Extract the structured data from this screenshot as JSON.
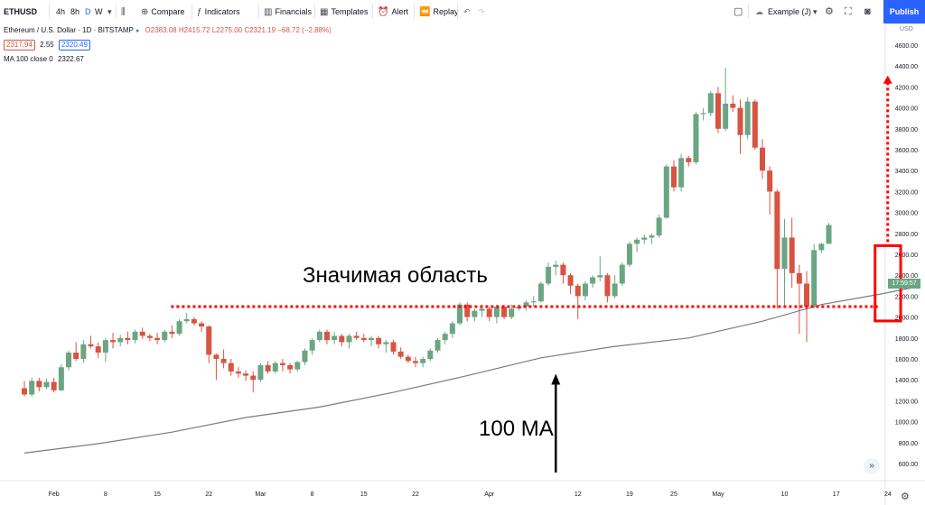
{
  "toolbar": {
    "symbol": "ETHUSD",
    "intervals": [
      "4h",
      "8h",
      "D",
      "W"
    ],
    "active_interval": "D",
    "compare_label": "Compare",
    "indicators_label": "Indicators",
    "financials_label": "Financials",
    "templates_label": "Templates",
    "alert_label": "Alert",
    "replay_label": "Replay",
    "layout_name": "Example (J)",
    "publish_label": "Publish"
  },
  "legend": {
    "title": "Ethereum / U.S. Dollar · 1D · BITSTAMP",
    "ohlc": "O2383.08 H2415.72 L2275.00 C2321.19 −68.72 (−2.88%)",
    "bid": "2317.94",
    "spread": "2.55",
    "ask": "2320.49",
    "ma_label": "MA 100 close 0",
    "ma_value": "2322.67"
  },
  "annotations": {
    "zone_label": "Значимая область",
    "ma_label": "100 MA"
  },
  "price_axis": {
    "currency": "USD",
    "last_price_time": "17:59:57"
  },
  "colors": {
    "up": "#6ba583",
    "down": "#d75442",
    "ma_line": "#787b86",
    "annotation": "#ff0000",
    "accent": "#2962ff",
    "last_price_tag": "#6ba583",
    "bid": "#d75442",
    "ask": "#2962ff"
  },
  "chart_data": {
    "type": "candlestick",
    "ylim": [
      500,
      4800
    ],
    "yticks": [
      600,
      800,
      1000,
      1200,
      1400,
      1600,
      1800,
      2000,
      2200,
      2400,
      2600,
      2800,
      3000,
      3200,
      3400,
      3600,
      3800,
      4000,
      4200,
      4400,
      4600
    ],
    "yticks_shown": [
      "600.00",
      "800.00",
      "1000.00",
      "1200.00",
      "1400.00",
      "1600.00",
      "1800.00",
      "2000.00",
      "2200.00",
      "2400.00",
      "2600.00",
      "2800.00",
      "3000.00",
      "3200.00",
      "3400.00",
      "3600.00",
      "3800.00",
      "4000.00",
      "4200.00",
      "4400.00",
      "4600.00"
    ],
    "start_date": "2021-01-28",
    "xticks": [
      {
        "day": 4,
        "label": "Feb"
      },
      {
        "day": 11,
        "label": "8"
      },
      {
        "day": 18,
        "label": "15"
      },
      {
        "day": 25,
        "label": "22"
      },
      {
        "day": 32,
        "label": "Mar"
      },
      {
        "day": 39,
        "label": "8"
      },
      {
        "day": 46,
        "label": "15"
      },
      {
        "day": 53,
        "label": "22"
      },
      {
        "day": 63,
        "label": "Apr"
      },
      {
        "day": 75,
        "label": "12"
      },
      {
        "day": 82,
        "label": "19"
      },
      {
        "day": 88,
        "label": "25"
      },
      {
        "day": 94,
        "label": "May"
      },
      {
        "day": 103,
        "label": "10"
      },
      {
        "day": 110,
        "label": "17"
      },
      {
        "day": 117,
        "label": "24"
      }
    ],
    "ohlc": [
      [
        1320,
        1390,
        1240,
        1260
      ],
      [
        1260,
        1420,
        1240,
        1390
      ],
      [
        1390,
        1420,
        1290,
        1330
      ],
      [
        1330,
        1410,
        1310,
        1380
      ],
      [
        1380,
        1420,
        1280,
        1300
      ],
      [
        1300,
        1550,
        1290,
        1520
      ],
      [
        1520,
        1680,
        1490,
        1660
      ],
      [
        1660,
        1760,
        1580,
        1600
      ],
      [
        1600,
        1780,
        1560,
        1740
      ],
      [
        1740,
        1820,
        1700,
        1720
      ],
      [
        1720,
        1760,
        1610,
        1660
      ],
      [
        1660,
        1800,
        1570,
        1780
      ],
      [
        1780,
        1850,
        1700,
        1760
      ],
      [
        1760,
        1830,
        1720,
        1800
      ],
      [
        1800,
        1860,
        1740,
        1780
      ],
      [
        1780,
        1880,
        1750,
        1860
      ],
      [
        1860,
        1900,
        1790,
        1820
      ],
      [
        1820,
        1840,
        1770,
        1800
      ],
      [
        1800,
        1850,
        1740,
        1780
      ],
      [
        1780,
        1880,
        1760,
        1860
      ],
      [
        1860,
        1920,
        1800,
        1840
      ],
      [
        1840,
        1980,
        1820,
        1960
      ],
      [
        1960,
        2040,
        1940,
        1980
      ],
      [
        1980,
        2000,
        1920,
        1940
      ],
      [
        1940,
        1960,
        1860,
        1910
      ],
      [
        1910,
        1920,
        1560,
        1640
      ],
      [
        1640,
        1650,
        1400,
        1600
      ],
      [
        1600,
        1690,
        1510,
        1560
      ],
      [
        1560,
        1600,
        1440,
        1480
      ],
      [
        1480,
        1520,
        1420,
        1460
      ],
      [
        1460,
        1490,
        1390,
        1440
      ],
      [
        1440,
        1480,
        1280,
        1400
      ],
      [
        1400,
        1560,
        1380,
        1540
      ],
      [
        1540,
        1580,
        1460,
        1480
      ],
      [
        1480,
        1580,
        1460,
        1560
      ],
      [
        1560,
        1600,
        1480,
        1540
      ],
      [
        1540,
        1560,
        1460,
        1500
      ],
      [
        1500,
        1580,
        1480,
        1570
      ],
      [
        1570,
        1700,
        1540,
        1680
      ],
      [
        1680,
        1800,
        1640,
        1780
      ],
      [
        1780,
        1880,
        1760,
        1860
      ],
      [
        1860,
        1880,
        1740,
        1780
      ],
      [
        1780,
        1860,
        1740,
        1820
      ],
      [
        1820,
        1840,
        1720,
        1760
      ],
      [
        1760,
        1840,
        1700,
        1820
      ],
      [
        1820,
        1860,
        1780,
        1800
      ],
      [
        1800,
        1840,
        1760,
        1780
      ],
      [
        1780,
        1820,
        1720,
        1800
      ],
      [
        1800,
        1820,
        1700,
        1740
      ],
      [
        1740,
        1780,
        1660,
        1760
      ],
      [
        1760,
        1780,
        1640,
        1670
      ],
      [
        1670,
        1710,
        1600,
        1620
      ],
      [
        1620,
        1640,
        1560,
        1580
      ],
      [
        1580,
        1620,
        1520,
        1560
      ],
      [
        1560,
        1620,
        1520,
        1600
      ],
      [
        1600,
        1700,
        1580,
        1680
      ],
      [
        1680,
        1800,
        1660,
        1780
      ],
      [
        1780,
        1860,
        1740,
        1840
      ],
      [
        1840,
        1960,
        1800,
        1940
      ],
      [
        1940,
        2140,
        1920,
        2120
      ],
      [
        2120,
        2140,
        1960,
        2000
      ],
      [
        2000,
        2080,
        1960,
        2060
      ],
      [
        2060,
        2120,
        2000,
        2080
      ],
      [
        2080,
        2100,
        1960,
        2000
      ],
      [
        2000,
        2120,
        1940,
        2100
      ],
      [
        2100,
        2120,
        1980,
        2000
      ],
      [
        2000,
        2120,
        1980,
        2080
      ],
      [
        2080,
        2120,
        2060,
        2100
      ],
      [
        2100,
        2160,
        2060,
        2140
      ],
      [
        2140,
        2200,
        2100,
        2150
      ],
      [
        2150,
        2340,
        2140,
        2320
      ],
      [
        2320,
        2520,
        2300,
        2480
      ],
      [
        2480,
        2540,
        2400,
        2500
      ],
      [
        2500,
        2520,
        2320,
        2400
      ],
      [
        2400,
        2420,
        2220,
        2300
      ],
      [
        2300,
        2320,
        1980,
        2200
      ],
      [
        2200,
        2340,
        2160,
        2320
      ],
      [
        2320,
        2400,
        2280,
        2380
      ],
      [
        2380,
        2580,
        2340,
        2400
      ],
      [
        2400,
        2420,
        2140,
        2200
      ],
      [
        2200,
        2400,
        2180,
        2320
      ],
      [
        2320,
        2520,
        2300,
        2500
      ],
      [
        2500,
        2720,
        2480,
        2700
      ],
      [
        2700,
        2760,
        2620,
        2740
      ],
      [
        2740,
        2790,
        2700,
        2760
      ],
      [
        2760,
        2800,
        2700,
        2780
      ],
      [
        2780,
        2980,
        2760,
        2950
      ],
      [
        2950,
        3460,
        2940,
        3440
      ],
      [
        3440,
        3500,
        3200,
        3240
      ],
      [
        3240,
        3560,
        3200,
        3520
      ],
      [
        3520,
        3540,
        3440,
        3480
      ],
      [
        3480,
        3960,
        3460,
        3940
      ],
      [
        3940,
        4000,
        3880,
        3950
      ],
      [
        3950,
        4160,
        3920,
        4140
      ],
      [
        4140,
        4200,
        3760,
        3800
      ],
      [
        3800,
        4380,
        3780,
        4040
      ],
      [
        4040,
        4120,
        3960,
        4000
      ],
      [
        4000,
        4080,
        3560,
        3740
      ],
      [
        3740,
        4100,
        3700,
        4060
      ],
      [
        4060,
        4080,
        3600,
        3620
      ],
      [
        3620,
        3700,
        3320,
        3400
      ],
      [
        3400,
        3440,
        2980,
        3200
      ],
      [
        3200,
        3220,
        2080,
        2460
      ],
      [
        2460,
        2940,
        2100,
        2760
      ],
      [
        2760,
        2950,
        2280,
        2420
      ],
      [
        2420,
        2500,
        1840,
        2320
      ],
      [
        2320,
        2440,
        1760,
        2100
      ],
      [
        2100,
        2700,
        2080,
        2640
      ],
      [
        2640,
        2710,
        2610,
        2700
      ],
      [
        2700,
        2900,
        2700,
        2880
      ]
    ],
    "ma": [
      [
        0,
        700
      ],
      [
        10,
        790
      ],
      [
        20,
        900
      ],
      [
        30,
        1040
      ],
      [
        40,
        1140
      ],
      [
        50,
        1280
      ],
      [
        60,
        1440
      ],
      [
        70,
        1610
      ],
      [
        80,
        1720
      ],
      [
        90,
        1800
      ],
      [
        100,
        1960
      ],
      [
        108,
        2120
      ],
      [
        116,
        2220
      ],
      [
        121,
        2290
      ]
    ],
    "zone_level": 2100,
    "highlight": {
      "from_day": 116,
      "to_day": 118,
      "low": 1980,
      "high": 2700
    },
    "arrow_target_price": 4300,
    "ma_arrow_day": 72,
    "last_price": 2321.19
  }
}
